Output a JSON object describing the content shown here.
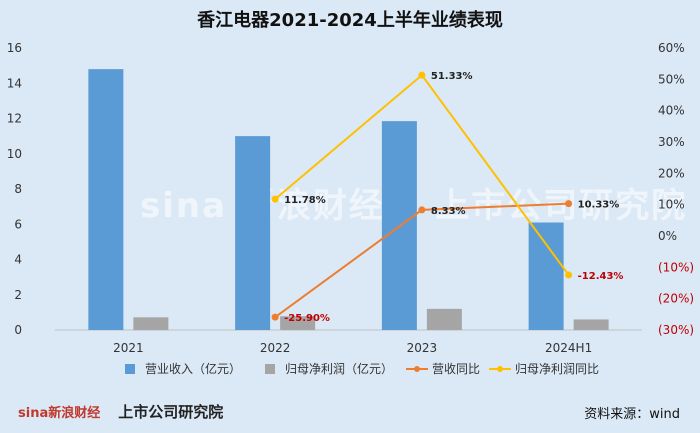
{
  "title": "香江电器2021-2024上半年业绩表现",
  "footer": {
    "logo_sina": "sina新浪财经",
    "logo_sub": "上市公司研究院",
    "source": "资料来源：wind"
  },
  "watermark": {
    "left": "sina 新浪财经",
    "right": "上市公司研究院"
  },
  "chart_data": {
    "type": "bar",
    "categories": [
      "2021",
      "2022",
      "2023",
      "2024H1"
    ],
    "series": [
      {
        "name": "营业收入（亿元）",
        "type": "bar",
        "axis": "left",
        "color": "#5b9bd5",
        "values": [
          14.8,
          11.0,
          11.85,
          6.1
        ]
      },
      {
        "name": "归母净利润（亿元）",
        "type": "bar",
        "axis": "left",
        "color": "#a5a5a5",
        "values": [
          0.72,
          0.78,
          1.2,
          0.6
        ]
      },
      {
        "name": "营收同比",
        "type": "line",
        "axis": "right",
        "color": "#ed7d31",
        "values": [
          null,
          -25.9,
          8.33,
          10.33
        ],
        "labels": [
          "",
          "-25.90%",
          "8.33%",
          "10.33%"
        ]
      },
      {
        "name": "归母净利润同比",
        "type": "line",
        "axis": "right",
        "color": "#ffc000",
        "values": [
          null,
          11.78,
          51.33,
          -12.43
        ],
        "labels": [
          "",
          "11.78%",
          "51.33%",
          "-12.43%"
        ]
      }
    ],
    "y_left": {
      "min": 0,
      "max": 16,
      "ticks": [
        "0",
        "2",
        "4",
        "6",
        "8",
        "10",
        "12",
        "14",
        "16"
      ]
    },
    "y_right": {
      "min": -30,
      "max": 60,
      "ticks": [
        "(30%)",
        "(20%)",
        "(10%)",
        "0%",
        "10%",
        "20%",
        "30%",
        "40%",
        "50%",
        "60%"
      ]
    },
    "negative_tick_color": "#c00000",
    "negative_label_color": "#c00000",
    "grid": false,
    "legend_position": "bottom"
  }
}
